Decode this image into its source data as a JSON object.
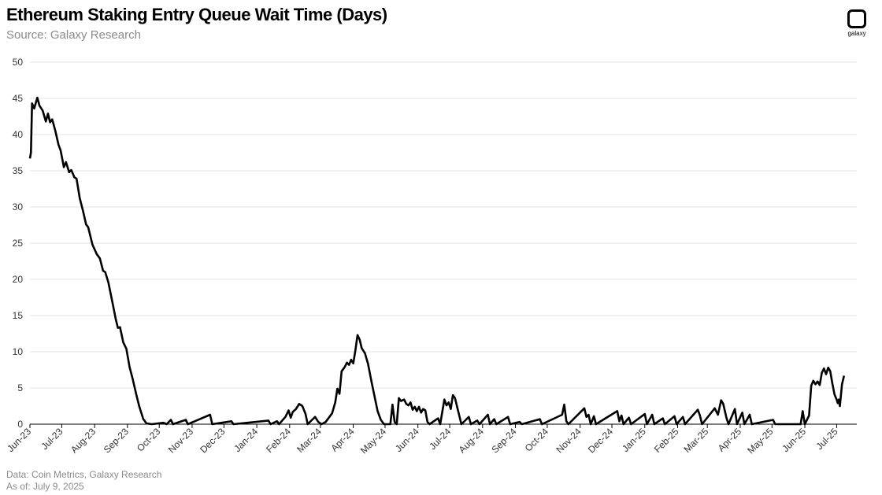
{
  "header": {
    "title": "Ethereum Staking Entry Queue Wait Time (Days)",
    "subtitle": "Source: Galaxy Research"
  },
  "brand": {
    "name": "galaxy"
  },
  "footer": {
    "data_note": "Data: Coin Metrics, Galaxy Research",
    "as_of": "As of: July 9, 2025"
  },
  "chart_data": {
    "type": "line",
    "title": "Ethereum Staking Entry Queue Wait Time (Days)",
    "xlabel": "",
    "ylabel": "",
    "ylim": [
      0,
      50
    ],
    "yticks": [
      0,
      5,
      10,
      15,
      20,
      25,
      30,
      35,
      40,
      45,
      50
    ],
    "xlim": [
      "2023-06-01",
      "2025-07-20"
    ],
    "xticks": [
      {
        "date": "2023-06-01",
        "label": "Jun-23"
      },
      {
        "date": "2023-07-01",
        "label": "Jul-23"
      },
      {
        "date": "2023-08-01",
        "label": "Aug-23"
      },
      {
        "date": "2023-09-01",
        "label": "Sep-23"
      },
      {
        "date": "2023-10-01",
        "label": "Oct-23"
      },
      {
        "date": "2023-11-01",
        "label": "Nov-23"
      },
      {
        "date": "2023-12-01",
        "label": "Dec-23"
      },
      {
        "date": "2024-01-01",
        "label": "Jan-24"
      },
      {
        "date": "2024-02-01",
        "label": "Feb-24"
      },
      {
        "date": "2024-03-01",
        "label": "Mar-24"
      },
      {
        "date": "2024-04-01",
        "label": "Apr-24"
      },
      {
        "date": "2024-05-01",
        "label": "May-24"
      },
      {
        "date": "2024-06-01",
        "label": "Jun-24"
      },
      {
        "date": "2024-07-01",
        "label": "Jul-24"
      },
      {
        "date": "2024-08-01",
        "label": "Aug-24"
      },
      {
        "date": "2024-09-01",
        "label": "Sep-24"
      },
      {
        "date": "2024-10-01",
        "label": "Oct-24"
      },
      {
        "date": "2024-11-01",
        "label": "Nov-24"
      },
      {
        "date": "2024-12-01",
        "label": "Dec-24"
      },
      {
        "date": "2025-01-01",
        "label": "Jan-25"
      },
      {
        "date": "2025-02-01",
        "label": "Feb-25"
      },
      {
        "date": "2025-03-01",
        "label": "Mar-25"
      },
      {
        "date": "2025-04-01",
        "label": "Apr-25"
      },
      {
        "date": "2025-05-01",
        "label": "May-25"
      },
      {
        "date": "2025-06-01",
        "label": "Jun-25"
      },
      {
        "date": "2025-07-01",
        "label": "Jul-25"
      }
    ],
    "grid": true,
    "legend": "none",
    "line_color": "#000000",
    "series": [
      {
        "points": [
          [
            "2023-06-01",
            36.7
          ],
          [
            "2023-06-02",
            37.5
          ],
          [
            "2023-06-03",
            44.3
          ],
          [
            "2023-06-05",
            43.6
          ],
          [
            "2023-06-08",
            45.1
          ],
          [
            "2023-06-10",
            44.0
          ],
          [
            "2023-06-13",
            43.3
          ],
          [
            "2023-06-16",
            41.8
          ],
          [
            "2023-06-18",
            42.9
          ],
          [
            "2023-06-20",
            41.7
          ],
          [
            "2023-06-22",
            42.1
          ],
          [
            "2023-06-25",
            40.5
          ],
          [
            "2023-06-28",
            38.6
          ],
          [
            "2023-06-30",
            37.8
          ],
          [
            "2023-07-03",
            35.5
          ],
          [
            "2023-07-05",
            36.2
          ],
          [
            "2023-07-08",
            34.8
          ],
          [
            "2023-07-10",
            35.1
          ],
          [
            "2023-07-13",
            34.1
          ],
          [
            "2023-07-15",
            33.9
          ],
          [
            "2023-07-18",
            31.2
          ],
          [
            "2023-07-21",
            29.5
          ],
          [
            "2023-07-24",
            27.6
          ],
          [
            "2023-07-26",
            27.2
          ],
          [
            "2023-07-30",
            24.8
          ],
          [
            "2023-08-03",
            23.5
          ],
          [
            "2023-08-06",
            22.9
          ],
          [
            "2023-08-09",
            21.2
          ],
          [
            "2023-08-11",
            21.0
          ],
          [
            "2023-08-14",
            19.6
          ],
          [
            "2023-08-18",
            16.7
          ],
          [
            "2023-08-21",
            14.5
          ],
          [
            "2023-08-23",
            13.3
          ],
          [
            "2023-08-25",
            13.4
          ],
          [
            "2023-08-28",
            11.3
          ],
          [
            "2023-08-31",
            10.4
          ],
          [
            "2023-09-03",
            7.9
          ],
          [
            "2023-09-06",
            6.2
          ],
          [
            "2023-09-09",
            4.3
          ],
          [
            "2023-09-12",
            2.5
          ],
          [
            "2023-09-16",
            0.7
          ],
          [
            "2023-09-19",
            0.1
          ],
          [
            "2023-09-24",
            0.0
          ],
          [
            "2023-10-05",
            0.2
          ],
          [
            "2023-10-08",
            0.0
          ],
          [
            "2023-10-12",
            0.6
          ],
          [
            "2023-10-14",
            0.0
          ],
          [
            "2023-10-26",
            0.6
          ],
          [
            "2023-10-28",
            0.0
          ],
          [
            "2023-11-18",
            1.3
          ],
          [
            "2023-11-20",
            0.0
          ],
          [
            "2023-12-08",
            0.4
          ],
          [
            "2023-12-10",
            0.0
          ],
          [
            "2024-01-12",
            0.5
          ],
          [
            "2024-01-14",
            0.0
          ],
          [
            "2024-01-20",
            0.4
          ],
          [
            "2024-01-22",
            0.0
          ],
          [
            "2024-01-28",
            1.0
          ],
          [
            "2024-01-31",
            1.9
          ],
          [
            "2024-02-02",
            0.9
          ],
          [
            "2024-02-04",
            1.7
          ],
          [
            "2024-02-07",
            2.1
          ],
          [
            "2024-02-10",
            2.8
          ],
          [
            "2024-02-13",
            2.5
          ],
          [
            "2024-02-16",
            1.4
          ],
          [
            "2024-02-18",
            0.0
          ],
          [
            "2024-02-25",
            1.0
          ],
          [
            "2024-02-28",
            0.3
          ],
          [
            "2024-03-02",
            0.0
          ],
          [
            "2024-03-06",
            0.3
          ],
          [
            "2024-03-12",
            1.5
          ],
          [
            "2024-03-15",
            3.0
          ],
          [
            "2024-03-17",
            4.9
          ],
          [
            "2024-03-19",
            4.2
          ],
          [
            "2024-03-21",
            7.3
          ],
          [
            "2024-03-24",
            7.9
          ],
          [
            "2024-03-26",
            8.5
          ],
          [
            "2024-03-28",
            8.2
          ],
          [
            "2024-03-30",
            8.9
          ],
          [
            "2024-04-01",
            8.4
          ],
          [
            "2024-04-03",
            10.2
          ],
          [
            "2024-04-05",
            12.3
          ],
          [
            "2024-04-07",
            11.7
          ],
          [
            "2024-04-09",
            10.5
          ],
          [
            "2024-04-12",
            9.8
          ],
          [
            "2024-04-15",
            8.3
          ],
          [
            "2024-04-18",
            6.0
          ],
          [
            "2024-04-21",
            3.9
          ],
          [
            "2024-04-24",
            1.8
          ],
          [
            "2024-04-27",
            0.6
          ],
          [
            "2024-04-30",
            0.0
          ],
          [
            "2024-05-06",
            0.0
          ],
          [
            "2024-05-08",
            2.7
          ],
          [
            "2024-05-10",
            0.3
          ],
          [
            "2024-05-12",
            0.0
          ],
          [
            "2024-05-14",
            3.6
          ],
          [
            "2024-05-16",
            3.2
          ],
          [
            "2024-05-19",
            3.4
          ],
          [
            "2024-05-21",
            2.8
          ],
          [
            "2024-05-23",
            2.6
          ],
          [
            "2024-05-25",
            3.0
          ],
          [
            "2024-05-27",
            2.0
          ],
          [
            "2024-05-29",
            2.4
          ],
          [
            "2024-05-31",
            1.8
          ],
          [
            "2024-06-02",
            2.4
          ],
          [
            "2024-06-04",
            1.6
          ],
          [
            "2024-06-06",
            2.1
          ],
          [
            "2024-06-08",
            1.9
          ],
          [
            "2024-06-10",
            0.3
          ],
          [
            "2024-06-12",
            0.0
          ],
          [
            "2024-06-20",
            0.8
          ],
          [
            "2024-06-22",
            0.0
          ],
          [
            "2024-06-26",
            3.4
          ],
          [
            "2024-06-28",
            2.6
          ],
          [
            "2024-06-30",
            3.0
          ],
          [
            "2024-07-02",
            2.1
          ],
          [
            "2024-07-04",
            4.0
          ],
          [
            "2024-07-06",
            3.6
          ],
          [
            "2024-07-09",
            1.8
          ],
          [
            "2024-07-12",
            0.0
          ],
          [
            "2024-07-19",
            1.0
          ],
          [
            "2024-07-21",
            0.0
          ],
          [
            "2024-07-27",
            0.5
          ],
          [
            "2024-07-29",
            0.0
          ],
          [
            "2024-08-06",
            1.3
          ],
          [
            "2024-08-08",
            0.0
          ],
          [
            "2024-08-12",
            0.7
          ],
          [
            "2024-08-14",
            0.0
          ],
          [
            "2024-08-25",
            1.0
          ],
          [
            "2024-08-27",
            0.0
          ],
          [
            "2024-09-05",
            0.3
          ],
          [
            "2024-09-07",
            0.0
          ],
          [
            "2024-09-24",
            0.7
          ],
          [
            "2024-09-26",
            0.0
          ],
          [
            "2024-10-15",
            1.3
          ],
          [
            "2024-10-17",
            2.7
          ],
          [
            "2024-10-19",
            0.4
          ],
          [
            "2024-10-21",
            0.0
          ],
          [
            "2024-11-05",
            2.2
          ],
          [
            "2024-11-07",
            1.0
          ],
          [
            "2024-11-09",
            1.3
          ],
          [
            "2024-11-11",
            0.0
          ],
          [
            "2024-11-14",
            1.1
          ],
          [
            "2024-11-16",
            0.0
          ],
          [
            "2024-12-06",
            1.8
          ],
          [
            "2024-12-08",
            0.4
          ],
          [
            "2024-12-10",
            1.2
          ],
          [
            "2024-12-12",
            0.0
          ],
          [
            "2024-12-17",
            0.9
          ],
          [
            "2024-12-19",
            0.0
          ],
          [
            "2025-01-01",
            1.4
          ],
          [
            "2025-01-03",
            0.0
          ],
          [
            "2025-01-08",
            1.3
          ],
          [
            "2025-01-10",
            0.0
          ],
          [
            "2025-01-18",
            0.8
          ],
          [
            "2025-01-20",
            0.0
          ],
          [
            "2025-01-29",
            1.1
          ],
          [
            "2025-01-31",
            0.0
          ],
          [
            "2025-02-06",
            1.0
          ],
          [
            "2025-02-08",
            0.0
          ],
          [
            "2025-02-20",
            2.0
          ],
          [
            "2025-02-22",
            1.2
          ],
          [
            "2025-02-24",
            0.0
          ],
          [
            "2025-03-08",
            2.2
          ],
          [
            "2025-03-11",
            1.3
          ],
          [
            "2025-03-14",
            3.3
          ],
          [
            "2025-03-16",
            2.8
          ],
          [
            "2025-03-19",
            0.9
          ],
          [
            "2025-03-21",
            0.0
          ],
          [
            "2025-03-27",
            2.1
          ],
          [
            "2025-03-29",
            0.0
          ],
          [
            "2025-04-03",
            1.6
          ],
          [
            "2025-04-05",
            0.0
          ],
          [
            "2025-04-10",
            1.3
          ],
          [
            "2025-04-12",
            0.0
          ],
          [
            "2025-05-02",
            0.6
          ],
          [
            "2025-05-04",
            0.0
          ],
          [
            "2025-05-28",
            0.0
          ],
          [
            "2025-05-30",
            1.8
          ],
          [
            "2025-06-01",
            0.0
          ],
          [
            "2025-06-05",
            1.2
          ],
          [
            "2025-06-07",
            5.3
          ],
          [
            "2025-06-09",
            6.0
          ],
          [
            "2025-06-11",
            5.5
          ],
          [
            "2025-06-13",
            5.9
          ],
          [
            "2025-06-15",
            5.4
          ],
          [
            "2025-06-17",
            7.1
          ],
          [
            "2025-06-19",
            7.7
          ],
          [
            "2025-06-21",
            6.9
          ],
          [
            "2025-06-23",
            7.8
          ],
          [
            "2025-06-25",
            7.3
          ],
          [
            "2025-06-27",
            5.6
          ],
          [
            "2025-06-29",
            4.1
          ],
          [
            "2025-07-01",
            3.4
          ],
          [
            "2025-07-02",
            2.9
          ],
          [
            "2025-07-03",
            3.4
          ],
          [
            "2025-07-04",
            2.5
          ],
          [
            "2025-07-06",
            5.5
          ],
          [
            "2025-07-08",
            6.7
          ]
        ]
      }
    ]
  }
}
